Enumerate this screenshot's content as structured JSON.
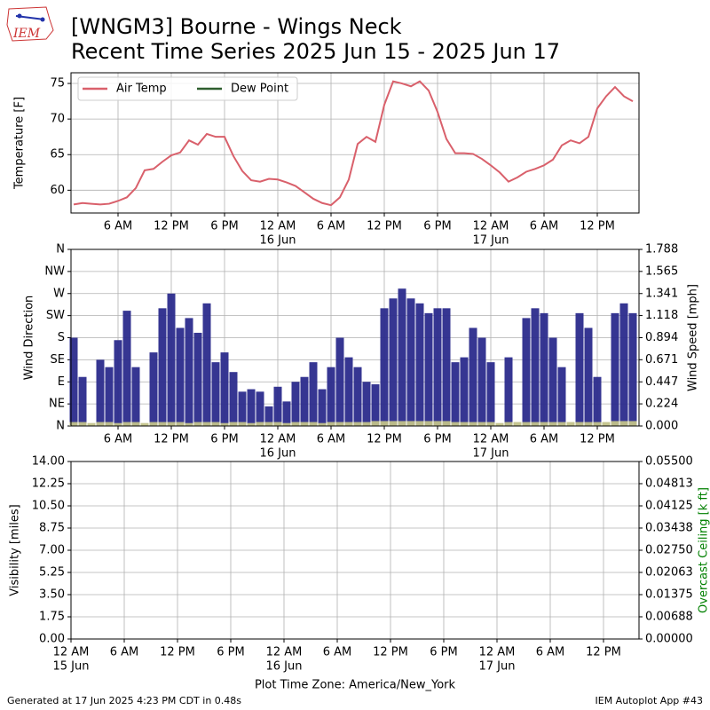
{
  "title": [
    "[WNGM3] Bourne - Wings Neck",
    "Recent Time Series 2025 Jun 15 - 2025 Jun 17"
  ],
  "logo_text": "IEM",
  "footer_left": "Generated at 17 Jun 2025 4:23 PM CDT in 0.48s",
  "footer_right": "IEM Autoplot App #43",
  "chart_data": [
    {
      "type": "line",
      "ylabel": "Temperature [F]",
      "xlim": [
        "2025-06-15T00:42",
        "2025-06-17T16:42"
      ],
      "ylim": [
        56.8,
        76.5
      ],
      "yticks": [
        60,
        65,
        70,
        75
      ],
      "xticks": [
        {
          "value": "2025-06-15T06:00",
          "label": "6 AM"
        },
        {
          "value": "2025-06-15T12:00",
          "label": "12 PM"
        },
        {
          "value": "2025-06-15T18:00",
          "label": "6 PM"
        },
        {
          "value": "2025-06-16T00:00",
          "label": "12 AM",
          "date": "16 Jun"
        },
        {
          "value": "2025-06-16T06:00",
          "label": "6 AM"
        },
        {
          "value": "2025-06-16T12:00",
          "label": "12 PM"
        },
        {
          "value": "2025-06-16T18:00",
          "label": "6 PM"
        },
        {
          "value": "2025-06-17T00:00",
          "label": "12 AM",
          "date": "17 Jun"
        },
        {
          "value": "2025-06-17T06:00",
          "label": "6 AM"
        },
        {
          "value": "2025-06-17T12:00",
          "label": "12 PM"
        }
      ],
      "grid": true,
      "legend": "upper left",
      "x": [
        "2025-06-15T01:00",
        "2025-06-15T02:00",
        "2025-06-15T03:00",
        "2025-06-15T04:00",
        "2025-06-15T05:00",
        "2025-06-15T06:00",
        "2025-06-15T07:00",
        "2025-06-15T08:00",
        "2025-06-15T09:00",
        "2025-06-15T10:00",
        "2025-06-15T11:00",
        "2025-06-15T12:00",
        "2025-06-15T13:00",
        "2025-06-15T14:00",
        "2025-06-15T15:00",
        "2025-06-15T16:00",
        "2025-06-15T17:00",
        "2025-06-15T18:00",
        "2025-06-15T19:00",
        "2025-06-15T20:00",
        "2025-06-15T21:00",
        "2025-06-15T22:00",
        "2025-06-15T23:00",
        "2025-06-16T00:00",
        "2025-06-16T01:00",
        "2025-06-16T02:00",
        "2025-06-16T03:00",
        "2025-06-16T04:00",
        "2025-06-16T05:00",
        "2025-06-16T06:00",
        "2025-06-16T07:00",
        "2025-06-16T08:00",
        "2025-06-16T09:00",
        "2025-06-16T10:00",
        "2025-06-16T11:00",
        "2025-06-16T12:00",
        "2025-06-16T13:00",
        "2025-06-16T14:00",
        "2025-06-16T15:00",
        "2025-06-16T16:00",
        "2025-06-16T17:00",
        "2025-06-16T18:00",
        "2025-06-16T19:00",
        "2025-06-16T20:00",
        "2025-06-16T21:00",
        "2025-06-16T22:00",
        "2025-06-16T23:00",
        "2025-06-17T00:00",
        "2025-06-17T01:00",
        "2025-06-17T02:00",
        "2025-06-17T03:00",
        "2025-06-17T04:00",
        "2025-06-17T05:00",
        "2025-06-17T06:00",
        "2025-06-17T07:00",
        "2025-06-17T08:00",
        "2025-06-17T09:00",
        "2025-06-17T10:00",
        "2025-06-17T11:00",
        "2025-06-17T12:00",
        "2025-06-17T13:00",
        "2025-06-17T14:00",
        "2025-06-17T15:00",
        "2025-06-17T16:00"
      ],
      "series": [
        {
          "name": "Air Temp",
          "color": "#d9606b",
          "values": [
            58.0,
            58.2,
            58.1,
            58.0,
            58.1,
            58.5,
            59.0,
            60.3,
            62.8,
            63.0,
            64.0,
            64.9,
            65.3,
            67.0,
            66.4,
            67.9,
            67.5,
            67.5,
            64.8,
            62.7,
            61.4,
            61.2,
            61.6,
            61.5,
            61.1,
            60.6,
            59.7,
            58.8,
            58.2,
            57.9,
            59.0,
            61.5,
            66.5,
            67.5,
            66.8,
            72.0,
            75.3,
            75.0,
            74.6,
            75.3,
            74.0,
            71.0,
            67.2,
            65.2,
            65.2,
            65.1,
            64.4,
            63.5,
            62.5,
            61.2,
            61.8,
            62.6,
            63.0,
            63.5,
            64.3,
            66.3,
            67.0,
            66.6,
            67.5,
            71.5,
            73.2,
            74.5,
            73.2,
            72.5
          ]
        },
        {
          "name": "Dew Point",
          "color": "#2e5e2e",
          "values": [
            null,
            null,
            null,
            null,
            null,
            null,
            null,
            null,
            null,
            null,
            null,
            null,
            null,
            null,
            null,
            null,
            null,
            null,
            null,
            null,
            null,
            null,
            null,
            null,
            null,
            null,
            null,
            null,
            null,
            null,
            null,
            null,
            null,
            null,
            null,
            null,
            null,
            null,
            null,
            null,
            null,
            null,
            null,
            null,
            null,
            null,
            null,
            null,
            null,
            null,
            null,
            null,
            null,
            null,
            null,
            null,
            null,
            null,
            null,
            null,
            null,
            null,
            null,
            null
          ]
        }
      ]
    },
    {
      "type": "bar",
      "ylabel": "Wind Direction",
      "y2label": "Wind Speed [mph]",
      "xlim": [
        "2025-06-15T00:42",
        "2025-06-17T16:42"
      ],
      "ylim": [
        0,
        360
      ],
      "yticks": [
        {
          "value": 0,
          "label": "N"
        },
        {
          "value": 45,
          "label": "NE"
        },
        {
          "value": 90,
          "label": "E"
        },
        {
          "value": 135,
          "label": "SE"
        },
        {
          "value": 180,
          "label": "S"
        },
        {
          "value": 225,
          "label": "SW"
        },
        {
          "value": 270,
          "label": "W"
        },
        {
          "value": 315,
          "label": "NW"
        },
        {
          "value": 360,
          "label": "N"
        }
      ],
      "y2lim": [
        0,
        1.788
      ],
      "y2ticks": [
        {
          "value": 0,
          "label": "0.000"
        },
        0.224,
        0.447,
        0.671,
        0.894,
        1.118,
        1.341,
        1.565,
        1.788
      ],
      "xticks": [
        {
          "value": "2025-06-15T06:00",
          "label": "6 AM"
        },
        {
          "value": "2025-06-15T12:00",
          "label": "12 PM"
        },
        {
          "value": "2025-06-15T18:00",
          "label": "6 PM"
        },
        {
          "value": "2025-06-16T00:00",
          "label": "12 AM",
          "date": "16 Jun"
        },
        {
          "value": "2025-06-16T06:00",
          "label": "6 AM"
        },
        {
          "value": "2025-06-16T12:00",
          "label": "12 PM"
        },
        {
          "value": "2025-06-16T18:00",
          "label": "6 PM"
        },
        {
          "value": "2025-06-17T00:00",
          "label": "12 AM",
          "date": "17 Jun"
        },
        {
          "value": "2025-06-17T06:00",
          "label": "6 AM"
        },
        {
          "value": "2025-06-17T12:00",
          "label": "12 PM"
        }
      ],
      "grid": true,
      "x": [
        "2025-06-15T01:00",
        "2025-06-15T02:00",
        "2025-06-15T03:00",
        "2025-06-15T04:00",
        "2025-06-15T05:00",
        "2025-06-15T06:00",
        "2025-06-15T07:00",
        "2025-06-15T08:00",
        "2025-06-15T09:00",
        "2025-06-15T10:00",
        "2025-06-15T11:00",
        "2025-06-15T12:00",
        "2025-06-15T13:00",
        "2025-06-15T14:00",
        "2025-06-15T15:00",
        "2025-06-15T16:00",
        "2025-06-15T17:00",
        "2025-06-15T18:00",
        "2025-06-15T19:00",
        "2025-06-15T20:00",
        "2025-06-15T21:00",
        "2025-06-15T22:00",
        "2025-06-15T23:00",
        "2025-06-16T00:00",
        "2025-06-16T01:00",
        "2025-06-16T02:00",
        "2025-06-16T03:00",
        "2025-06-16T04:00",
        "2025-06-16T05:00",
        "2025-06-16T06:00",
        "2025-06-16T07:00",
        "2025-06-16T08:00",
        "2025-06-16T09:00",
        "2025-06-16T10:00",
        "2025-06-16T11:00",
        "2025-06-16T12:00",
        "2025-06-16T13:00",
        "2025-06-16T14:00",
        "2025-06-16T15:00",
        "2025-06-16T16:00",
        "2025-06-16T17:00",
        "2025-06-16T18:00",
        "2025-06-16T19:00",
        "2025-06-16T20:00",
        "2025-06-16T21:00",
        "2025-06-16T22:00",
        "2025-06-16T23:00",
        "2025-06-17T00:00",
        "2025-06-17T01:00",
        "2025-06-17T02:00",
        "2025-06-17T03:00",
        "2025-06-17T04:00",
        "2025-06-17T05:00",
        "2025-06-17T06:00",
        "2025-06-17T07:00",
        "2025-06-17T08:00",
        "2025-06-17T09:00",
        "2025-06-17T10:00",
        "2025-06-17T11:00",
        "2025-06-17T12:00",
        "2025-06-17T13:00",
        "2025-06-17T14:00",
        "2025-06-17T15:00",
        "2025-06-17T16:00"
      ],
      "series": [
        {
          "color": "#2b2b8c",
          "values": [
            180,
            100,
            null,
            135,
            120,
            175,
            235,
            120,
            null,
            150,
            240,
            270,
            200,
            220,
            190,
            250,
            130,
            150,
            110,
            70,
            75,
            70,
            40,
            80,
            50,
            90,
            100,
            130,
            75,
            120,
            180,
            140,
            120,
            90,
            85,
            240,
            260,
            280,
            260,
            250,
            230,
            240,
            240,
            130,
            140,
            200,
            180,
            130,
            null,
            140,
            null,
            220,
            240,
            230,
            180,
            120,
            null,
            230,
            200,
            100,
            null,
            230,
            250,
            230
          ]
        },
        {
          "color": "#c2c28a",
          "axis": "y2",
          "values": [
            0.04,
            0.04,
            0.03,
            0.04,
            0.04,
            0.03,
            0.04,
            0.04,
            0.03,
            0.04,
            0.04,
            0.04,
            0.04,
            0.03,
            0.04,
            0.04,
            0.04,
            0.03,
            0.04,
            0.04,
            0.03,
            0.04,
            0.04,
            0.04,
            0.03,
            0.04,
            0.04,
            0.04,
            0.03,
            0.04,
            0.04,
            0.04,
            0.04,
            0.04,
            0.05,
            0.05,
            0.05,
            0.05,
            0.05,
            0.05,
            0.05,
            0.05,
            0.05,
            0.04,
            0.04,
            0.04,
            0.04,
            0.04,
            0.03,
            0.04,
            0.04,
            0.04,
            0.04,
            0.04,
            0.04,
            0.04,
            0.04,
            0.04,
            0.04,
            0.04,
            0.04,
            0.05,
            0.05,
            0.05
          ]
        }
      ]
    },
    {
      "type": "line",
      "ylabel": "Visibility [miles]",
      "y2label": "Overcast Ceiling [k ft]",
      "y2label_color": "#008000",
      "xlabel": "Plot Time Zone: America/New_York",
      "xlim": [
        "2025-06-15T00:00",
        "2025-06-17T16:00"
      ],
      "ylim": [
        0,
        14
      ],
      "yticks": [
        {
          "value": 0,
          "label": "0.00"
        },
        1.75,
        {
          "value": 3.5,
          "label": "3.50"
        },
        5.25,
        {
          "value": 7,
          "label": "7.00"
        },
        8.75,
        {
          "value": 10.5,
          "label": "10.50"
        },
        12.25,
        {
          "value": 14,
          "label": "14.00"
        }
      ],
      "y2lim": [
        0,
        0.055
      ],
      "y2ticks": [
        {
          "value": 0,
          "label": "0.00000"
        },
        0.00688,
        0.01375,
        0.02063,
        {
          "value": 0.0275,
          "label": "0.02750"
        },
        0.03438,
        0.04125,
        0.04813,
        {
          "value": 0.055,
          "label": "0.05500"
        }
      ],
      "xticks": [
        {
          "value": "2025-06-15T00:00",
          "label": "12 AM",
          "date": "15 Jun"
        },
        {
          "value": "2025-06-15T06:00",
          "label": "6 AM"
        },
        {
          "value": "2025-06-15T12:00",
          "label": "12 PM"
        },
        {
          "value": "2025-06-15T18:00",
          "label": "6 PM"
        },
        {
          "value": "2025-06-16T00:00",
          "label": "12 AM",
          "date": "16 Jun"
        },
        {
          "value": "2025-06-16T06:00",
          "label": "6 AM"
        },
        {
          "value": "2025-06-16T12:00",
          "label": "12 PM"
        },
        {
          "value": "2025-06-16T18:00",
          "label": "6 PM"
        },
        {
          "value": "2025-06-17T00:00",
          "label": "12 AM",
          "date": "17 Jun"
        },
        {
          "value": "2025-06-17T06:00",
          "label": "6 AM"
        },
        {
          "value": "2025-06-17T12:00",
          "label": "12 PM"
        }
      ],
      "grid": true
    }
  ]
}
